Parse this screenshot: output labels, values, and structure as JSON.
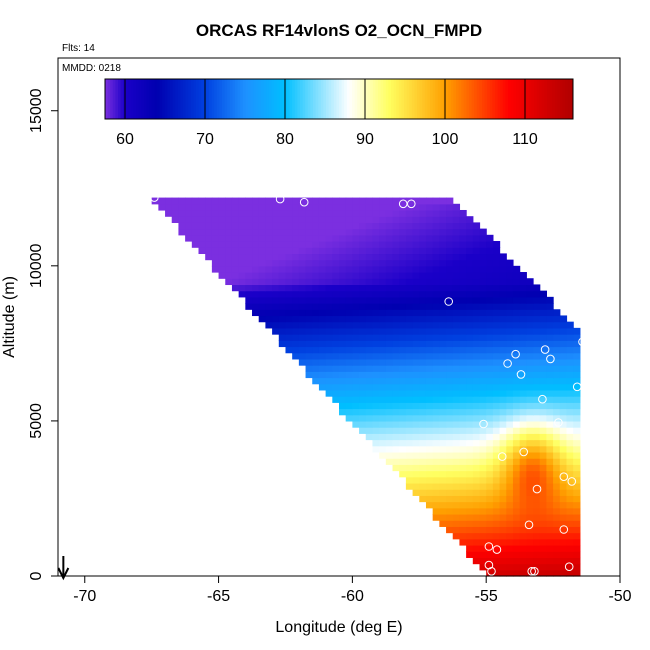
{
  "chart_data": {
    "type": "heatmap",
    "title": "ORCAS RF14vlonS O2_OCN_FMPD",
    "subtitle_flts": "Flts: 14",
    "subtitle_mmdd": "MMDD: 0218",
    "xlabel": "Longitude (deg E)",
    "ylabel": "Altitude (m)",
    "xlim": [
      -71,
      -50
    ],
    "ylim": [
      0,
      16700
    ],
    "x_ticks": [
      -70,
      -65,
      -60,
      -55,
      -50
    ],
    "x_tick_labels": [
      "-70",
      "-65",
      "-60",
      "-55",
      "-50"
    ],
    "y_ticks": [
      0,
      5000,
      10000,
      15000
    ],
    "y_tick_labels": [
      "0",
      "5000",
      "10000",
      "15000"
    ],
    "colorbar": {
      "min": 57.5,
      "max": 116,
      "ticks": [
        60,
        70,
        80,
        90,
        100,
        110
      ],
      "tick_labels": [
        "60",
        "70",
        "80",
        "90",
        "100",
        "110"
      ],
      "colors": [
        "#7b2fe0",
        "#1a00c8",
        "#0000b0",
        "#0040e0",
        "#1e90ff",
        "#00bfff",
        "#ffffff",
        "#ffff60",
        "#ffa000",
        "#ff0000",
        "#b00000"
      ],
      "stops": [
        57.5,
        60,
        64,
        70,
        75,
        80,
        88,
        93,
        100,
        108,
        116
      ]
    },
    "field_extent": {
      "top_altitude": 12200,
      "upper_left_longitude": -67.5,
      "upper_right_longitude": -56.5,
      "right_edge_longitude": -51.5,
      "right_edge_top_altitude": 7700
    },
    "arrow_longitude": -70.8,
    "marker_color": "#ffffff",
    "points": [
      {
        "lon": -67.4,
        "alt": 12200
      },
      {
        "lon": -62.7,
        "alt": 12150
      },
      {
        "lon": -61.8,
        "alt": 12050
      },
      {
        "lon": -58.1,
        "alt": 12000
      },
      {
        "lon": -57.8,
        "alt": 12000
      },
      {
        "lon": -56.4,
        "alt": 8850
      },
      {
        "lon": -51.4,
        "alt": 7550
      },
      {
        "lon": -52.8,
        "alt": 7300
      },
      {
        "lon": -53.9,
        "alt": 7150
      },
      {
        "lon": -52.6,
        "alt": 7000
      },
      {
        "lon": -54.2,
        "alt": 6850
      },
      {
        "lon": -53.7,
        "alt": 6500
      },
      {
        "lon": -51.6,
        "alt": 6100
      },
      {
        "lon": -52.9,
        "alt": 5700
      },
      {
        "lon": -55.1,
        "alt": 4900
      },
      {
        "lon": -52.3,
        "alt": 4950
      },
      {
        "lon": -53.6,
        "alt": 4000
      },
      {
        "lon": -54.4,
        "alt": 3850
      },
      {
        "lon": -52.1,
        "alt": 3200
      },
      {
        "lon": -51.8,
        "alt": 3050
      },
      {
        "lon": -53.1,
        "alt": 2800
      },
      {
        "lon": -53.4,
        "alt": 1650
      },
      {
        "lon": -52.1,
        "alt": 1500
      },
      {
        "lon": -54.9,
        "alt": 950
      },
      {
        "lon": -54.6,
        "alt": 850
      },
      {
        "lon": -54.9,
        "alt": 350
      },
      {
        "lon": -54.8,
        "alt": 150
      },
      {
        "lon": -51.9,
        "alt": 300
      },
      {
        "lon": -53.3,
        "alt": 150
      },
      {
        "lon": -53.2,
        "alt": 150
      }
    ]
  }
}
